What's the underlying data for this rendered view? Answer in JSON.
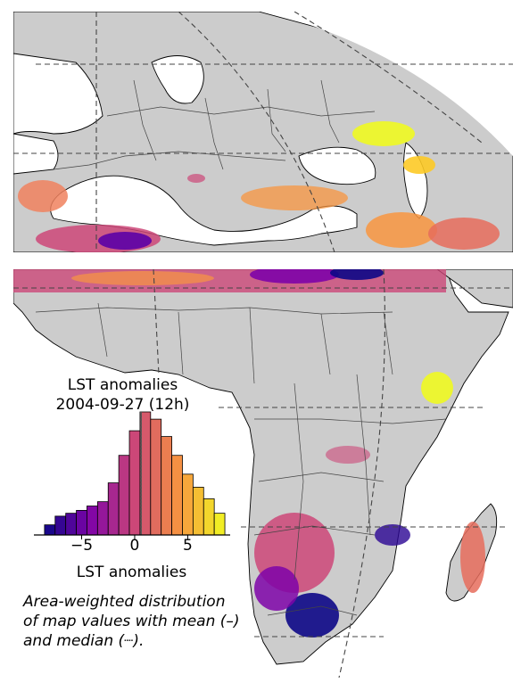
{
  "colors": {
    "land": "#cccccc",
    "ocean": "#ffffff",
    "coast": "#000000",
    "border": "#444444",
    "graticule": "#444444",
    "colormap": "plasma"
  },
  "inset": {
    "title_line1": "LST anomalies",
    "title_line2": "2004-09-27 (12h)",
    "xlabel": "LST anomalies",
    "ticks": [
      "−5",
      "0",
      "5"
    ],
    "caption_lines": [
      "Area-weighted distribution",
      "of map values with mean (–)",
      "and median (┈)."
    ]
  },
  "chart_data": {
    "type": "bar",
    "title": "LST anomalies\n2004-09-27 (12h)",
    "xlabel": "LST anomalies",
    "x_ticks": [
      -5,
      0,
      5
    ],
    "xlim": [
      -9.5,
      9
    ],
    "bin_edges": [
      -8.5,
      -7.5,
      -6.5,
      -5.5,
      -4.5,
      -3.5,
      -2.5,
      -1.5,
      -0.5,
      0.5,
      1.5,
      2.5,
      3.5,
      4.5,
      5.5,
      6.5,
      7.5,
      8.5
    ],
    "values": [
      0.07,
      0.13,
      0.15,
      0.17,
      0.2,
      0.23,
      0.36,
      0.55,
      0.72,
      0.85,
      0.8,
      0.68,
      0.55,
      0.42,
      0.33,
      0.25,
      0.15
    ],
    "mean": 0.6,
    "median": 0.6
  }
}
